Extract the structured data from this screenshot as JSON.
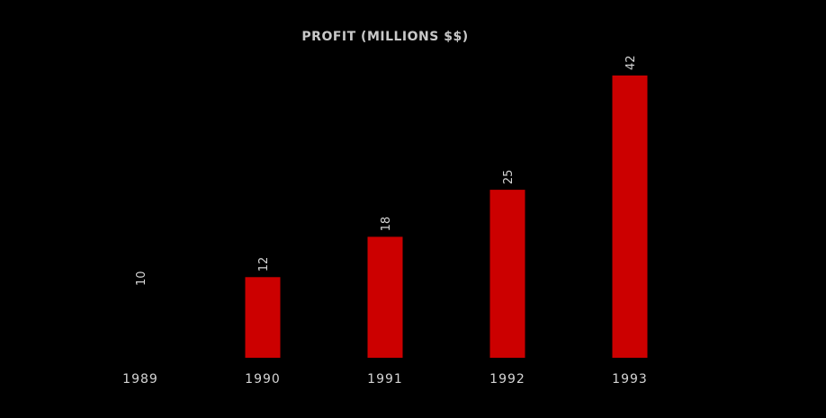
{
  "chart_data": {
    "type": "bar",
    "title": "PROFIT (MILLIONS $$)",
    "categories": [
      "1989",
      "1990",
      "1991",
      "1992",
      "1993"
    ],
    "values": [
      10,
      12,
      18,
      25,
      42
    ],
    "visible_bars": [
      false,
      true,
      true,
      true,
      true
    ],
    "xlabel": "",
    "ylabel": "",
    "ylim": [
      0,
      42
    ],
    "grid": false,
    "legend": "none",
    "bar_color": "#cc0000",
    "background_color": "#000000",
    "text_color": "#d4d4d4",
    "title_color": "#c8c8c8"
  }
}
